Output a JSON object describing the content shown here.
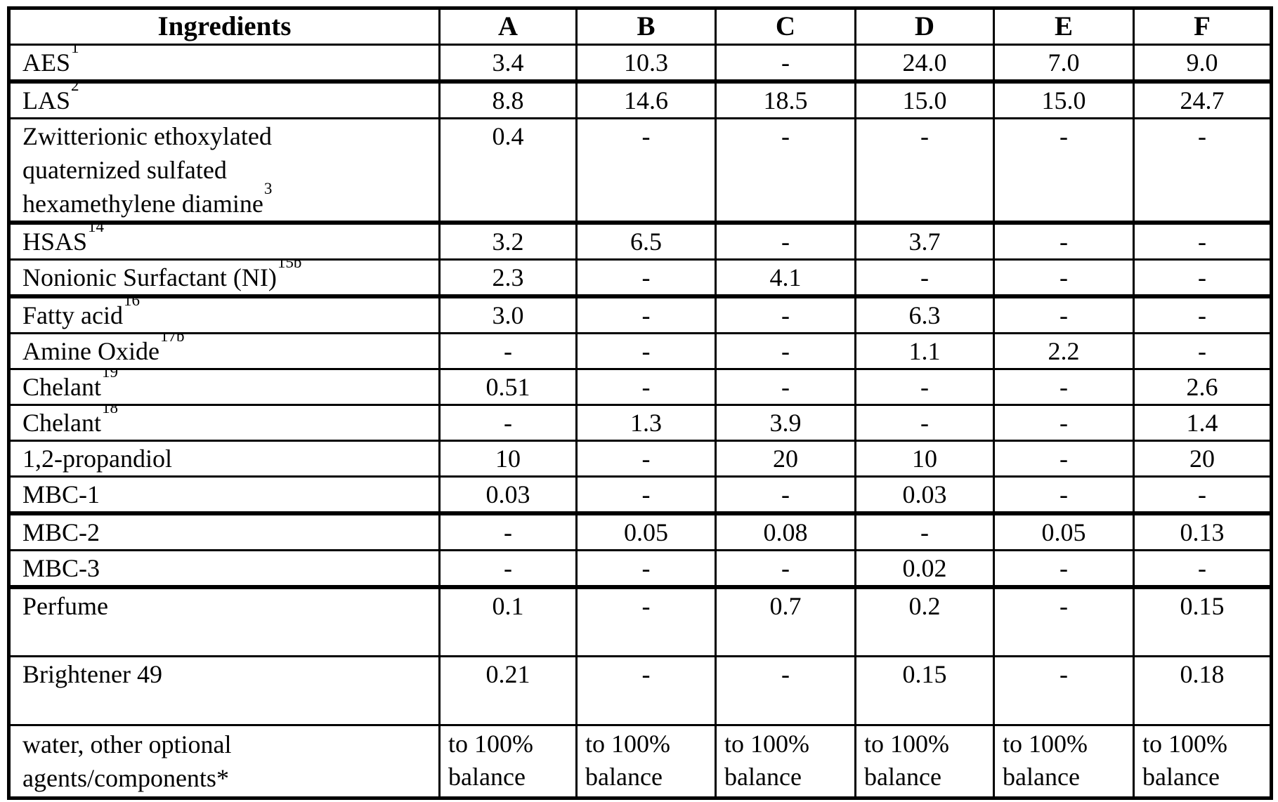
{
  "colors": {
    "text": "#000000",
    "border": "#000000",
    "background": "#ffffff"
  },
  "document": {
    "table": {
      "header": {
        "ingredients_label": "Ingredients",
        "formula_columns": [
          "A",
          "B",
          "C",
          "D",
          "E",
          "F"
        ]
      },
      "rows": [
        {
          "name_lines": [
            "AES"
          ],
          "sup": "1",
          "values": [
            "3.4",
            "10.3",
            "-",
            "24.0",
            "7.0",
            "9.0"
          ]
        },
        {
          "name_lines": [
            "LAS"
          ],
          "sup": "2",
          "values": [
            "8.8",
            "14.6",
            "18.5",
            "15.0",
            "15.0",
            "24.7"
          ]
        },
        {
          "name_lines": [
            "Zwitterionic ethoxylated",
            "quaternized sulfated",
            "hexamethylene diamine"
          ],
          "sup": "3",
          "values": [
            "0.4",
            "-",
            "-",
            "-",
            "-",
            "-"
          ]
        },
        {
          "name_lines": [
            "HSAS"
          ],
          "sup": "14",
          "values": [
            "3.2",
            "6.5",
            "-",
            "3.7",
            "-",
            "-"
          ]
        },
        {
          "name_lines": [
            "Nonionic Surfactant (NI)"
          ],
          "sup": "15b",
          "values": [
            "2.3",
            "-",
            "4.1",
            "-",
            "-",
            "-"
          ]
        },
        {
          "name_lines": [
            "Fatty acid"
          ],
          "sup": "16",
          "values": [
            "3.0",
            "-",
            "-",
            "6.3",
            "-",
            "-"
          ]
        },
        {
          "name_lines": [
            "Amine Oxide"
          ],
          "sup": "17b",
          "values": [
            "-",
            "-",
            "-",
            "1.1",
            "2.2",
            "-"
          ]
        },
        {
          "name_lines": [
            "Chelant"
          ],
          "sup": "19",
          "values": [
            "0.51",
            "-",
            "-",
            "-",
            "-",
            "2.6"
          ]
        },
        {
          "name_lines": [
            "Chelant"
          ],
          "sup": "18",
          "values": [
            "-",
            "1.3",
            "3.9",
            "-",
            "-",
            "1.4"
          ]
        },
        {
          "name_lines": [
            "1,2-propandiol"
          ],
          "sup": "",
          "values": [
            "10",
            "-",
            "20",
            "10",
            "-",
            "20"
          ]
        },
        {
          "name_lines": [
            "MBC-1"
          ],
          "sup": "",
          "values": [
            "0.03",
            "-",
            "-",
            "0.03",
            "-",
            "-"
          ]
        },
        {
          "name_lines": [
            "MBC-2"
          ],
          "sup": "",
          "values": [
            "-",
            "0.05",
            "0.08",
            "-",
            "0.05",
            "0.13"
          ]
        },
        {
          "name_lines": [
            "MBC-3"
          ],
          "sup": "",
          "values": [
            "-",
            "-",
            "-",
            "0.02",
            "-",
            "-"
          ]
        },
        {
          "name_lines": [
            "Perfume"
          ],
          "sup": "",
          "values": [
            "0.1",
            "-",
            "0.7",
            "0.2",
            "-",
            "0.15"
          ]
        },
        {
          "name_lines": [
            "Brightener 49"
          ],
          "sup": "",
          "values": [
            "0.21",
            "-",
            "-",
            "0.15",
            "-",
            "0.18"
          ]
        },
        {
          "name_lines": [
            "water, other optional",
            "agents/components*"
          ],
          "sup": "",
          "values": [
            "to 100% balance",
            "to 100% balance",
            "to 100% balance",
            "to 100% balance",
            "to 100% balance",
            "to 100% balance"
          ]
        }
      ]
    }
  }
}
